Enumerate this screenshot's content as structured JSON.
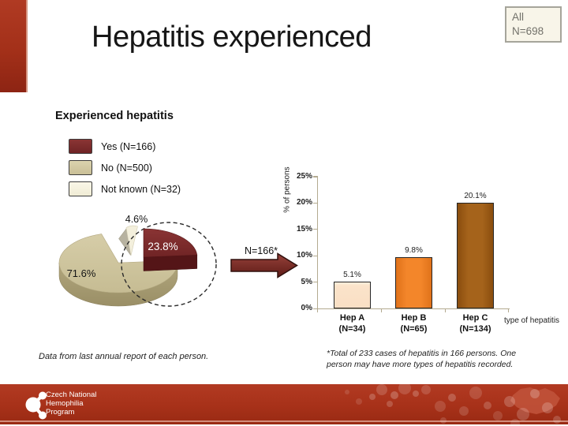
{
  "slide": {
    "title": "Hepatitis experienced",
    "badge": {
      "line1": "All",
      "line2": "N=698"
    }
  },
  "pie_section": {
    "heading": "Experienced hepatitis",
    "legend": [
      {
        "label": "Yes (N=166)",
        "color": "#7b2b2b"
      },
      {
        "label": "No (N=500)",
        "color": "#cfc49c"
      },
      {
        "label": "Not known (N=32)",
        "color": "#f4f0dd"
      }
    ],
    "note": "Data from last annual report of each person."
  },
  "arrow_label": "N=166*",
  "bar_section": {
    "note": "*Total of 233 cases of hepatitis in 166 persons. One person may have more types of hepatitis recorded."
  },
  "footer": {
    "org_lines": [
      "Czech National",
      "Hemophilia",
      "Program"
    ]
  },
  "chart_data": [
    {
      "type": "pie",
      "title": "Experienced hepatitis",
      "labels": [
        "Yes (N=166)",
        "No (N=500)",
        "Not known (N=32)"
      ],
      "values": [
        23.8,
        71.6,
        4.6
      ],
      "value_labels": [
        "23.8%",
        "71.6%",
        "4.6%"
      ],
      "colors": [
        "#7b2b2b",
        "#cfc49c",
        "#f4f0dd"
      ],
      "style": "3d-exploded-pie",
      "callout": "N=166*"
    },
    {
      "type": "bar",
      "categories": [
        "Hep A (N=34)",
        "Hep B (N=65)",
        "Hep C (N=134)"
      ],
      "cat_lines": [
        [
          "Hep A",
          "(N=34)"
        ],
        [
          "Hep B",
          "(N=65)"
        ],
        [
          "Hep C",
          "(N=134)"
        ]
      ],
      "values": [
        5.1,
        9.8,
        20.1
      ],
      "value_labels": [
        "5.1%",
        "9.8%",
        "20.1%"
      ],
      "colors": [
        "#fbe3ca",
        "#f3862a",
        "#a5631b"
      ],
      "ylabel": "% of persons",
      "xlabel": "type of hepatitis",
      "ylim": [
        0,
        25
      ],
      "yticks": [
        "0%",
        "5%",
        "10%",
        "15%",
        "20%",
        "25%"
      ],
      "grid": false,
      "legend_position": "none"
    }
  ]
}
